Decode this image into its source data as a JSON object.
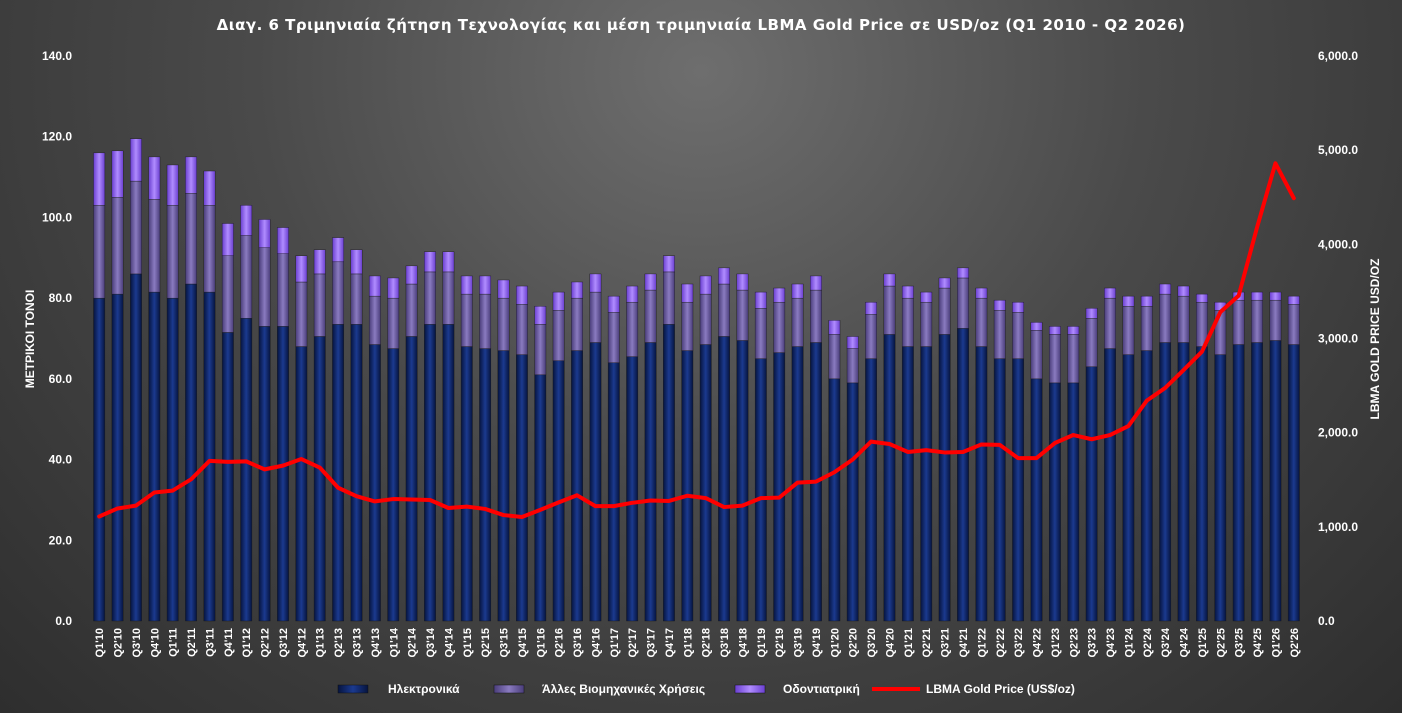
{
  "chart_data": {
    "type": "bar",
    "title": "Διαγ. 6     Τριμηνιαία ζήτηση Τεχνολογίας και μέση τριμηνιαία LBMA Gold Price  σε USD/oz (Q1 2010 - Q2 2026)",
    "ylabel": "ΜΕΤΡΙΚΟΙ ΤΟΝΟΙ",
    "y2label": "LBMA GOLD PRICE USD/OZ",
    "ylim": [
      0,
      140
    ],
    "y2lim": [
      0,
      6000
    ],
    "yticks": [
      "0.0",
      "20.0",
      "40.0",
      "60.0",
      "80.0",
      "100.0",
      "120.0",
      "140.0"
    ],
    "y2ticks": [
      "0.0",
      "1,000.0",
      "2,000.0",
      "3,000.0",
      "4,000.0",
      "5,000.0",
      "6,000.0"
    ],
    "stacked": true,
    "grid": false,
    "legend_position": "bottom",
    "categories": [
      "Q1'10",
      "Q2'10",
      "Q3'10",
      "Q4'10",
      "Q1'11",
      "Q2'11",
      "Q3'11",
      "Q4'11",
      "Q1'12",
      "Q2'12",
      "Q3'12",
      "Q4'12",
      "Q1'13",
      "Q2'13",
      "Q3'13",
      "Q4'13",
      "Q1'14",
      "Q2'14",
      "Q3'14",
      "Q4'14",
      "Q1'15",
      "Q2'15",
      "Q3'15",
      "Q4'15",
      "Q1'16",
      "Q2'16",
      "Q3'16",
      "Q4'16",
      "Q1'17",
      "Q2'17",
      "Q3'17",
      "Q4'17",
      "Q1'18",
      "Q2'18",
      "Q3'18",
      "Q4'18",
      "Q1'19",
      "Q2'19",
      "Q3'19",
      "Q4'19",
      "Q1'20",
      "Q2'20",
      "Q3'20",
      "Q4'20",
      "Q1'21",
      "Q2'21",
      "Q3'21",
      "Q4'21",
      "Q1'22",
      "Q2'22",
      "Q3'22",
      "Q4'22",
      "Q1'23",
      "Q2'23",
      "Q3'23",
      "Q4'23",
      "Q1'24",
      "Q2'24",
      "Q3'24",
      "Q4'24",
      "Q1'25",
      "Q2'25",
      "Q3'25",
      "Q4'25",
      "Q1'26",
      "Q2'26"
    ],
    "series": [
      {
        "name": "Ηλεκτρονικά",
        "axis": "left",
        "color": "#0b1f5e",
        "values": [
          80,
          81,
          86,
          81.5,
          80,
          83.5,
          81.5,
          71.5,
          75,
          73,
          73,
          68,
          70.5,
          73.5,
          73.5,
          68.5,
          67.5,
          70.5,
          73.5,
          73.5,
          68,
          67.5,
          67,
          66,
          61,
          64.5,
          67,
          69,
          64,
          65.5,
          69,
          73.5,
          67,
          68.5,
          70.5,
          69.5,
          65,
          66.5,
          68,
          69,
          60,
          59,
          65,
          71,
          68,
          68,
          71,
          72.5,
          68,
          65,
          65,
          60,
          59,
          59,
          63,
          67.5,
          66,
          67,
          69,
          69,
          68,
          66,
          68.5,
          69,
          69.5,
          68.5
        ]
      },
      {
        "name": "Άλλες Βιομηχανικές Χρήσεις",
        "axis": "left",
        "color": "#6a5a9e",
        "values": [
          23,
          24,
          23,
          23,
          23,
          22.5,
          21.5,
          19,
          20.5,
          19.5,
          18,
          16,
          15.5,
          15.5,
          12.5,
          12,
          12.5,
          13,
          13,
          13,
          13,
          13.5,
          13,
          12.5,
          12.5,
          12.5,
          13,
          12.5,
          12.5,
          13.5,
          13,
          13,
          12,
          12.5,
          13,
          12.5,
          12.5,
          12.5,
          12,
          13,
          11,
          8.5,
          11,
          12,
          12,
          11,
          11.5,
          12.5,
          12,
          12,
          11.5,
          12,
          12,
          12,
          12,
          12.5,
          12,
          11,
          12,
          11.5,
          11,
          11,
          11,
          10.5,
          10,
          10
        ]
      },
      {
        "name": "Οδοντιατρική",
        "axis": "left",
        "color": "#8f5fe8",
        "values": [
          13,
          11.5,
          10.5,
          10.5,
          10,
          9,
          8.5,
          8,
          7.5,
          7,
          6.5,
          6.5,
          6,
          6,
          6,
          5,
          5,
          4.5,
          5,
          5,
          4.5,
          4.5,
          4.5,
          4.5,
          4.5,
          4.5,
          4,
          4.5,
          4,
          4,
          4,
          4,
          4.5,
          4.5,
          4,
          4,
          4,
          3.5,
          3.5,
          3.5,
          3.5,
          3,
          3,
          3,
          3,
          2.5,
          2.5,
          2.5,
          2.5,
          2.5,
          2.5,
          2,
          2,
          2,
          2.5,
          2.5,
          2.5,
          2.5,
          2.5,
          2.5,
          2,
          2,
          2,
          2,
          2,
          2
        ]
      },
      {
        "name": "LBMA Gold Price (US$/oz)",
        "type": "line",
        "axis": "right",
        "color": "#ff0000",
        "values": [
          1110,
          1195,
          1225,
          1365,
          1385,
          1505,
          1700,
          1690,
          1695,
          1610,
          1650,
          1720,
          1630,
          1415,
          1325,
          1270,
          1295,
          1290,
          1285,
          1200,
          1215,
          1190,
          1125,
          1105,
          1180,
          1260,
          1335,
          1220,
          1220,
          1255,
          1280,
          1275,
          1330,
          1305,
          1210,
          1225,
          1305,
          1310,
          1470,
          1480,
          1580,
          1715,
          1905,
          1880,
          1795,
          1815,
          1790,
          1795,
          1875,
          1870,
          1730,
          1730,
          1890,
          1975,
          1930,
          1975,
          2070,
          2340,
          2475,
          2665,
          2860,
          3280,
          3455,
          4180,
          4860,
          4490
        ]
      }
    ]
  }
}
